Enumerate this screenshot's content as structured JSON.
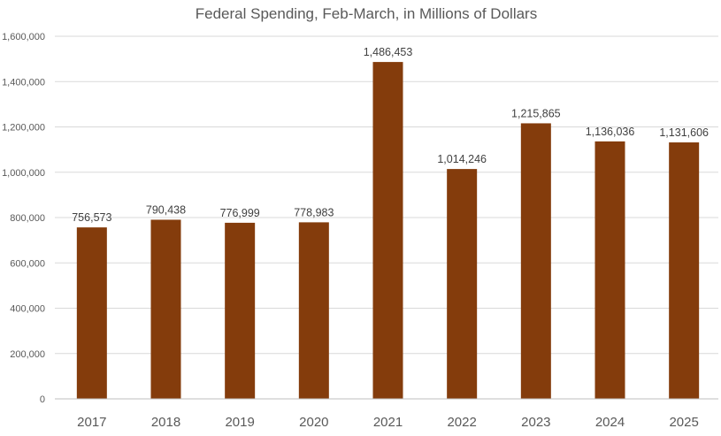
{
  "chart_data": {
    "type": "bar",
    "title": "Federal Spending, Feb-March, in Millions of Dollars",
    "xlabel": "",
    "ylabel": "",
    "categories": [
      "2017",
      "2018",
      "2019",
      "2020",
      "2021",
      "2022",
      "2023",
      "2024",
      "2025"
    ],
    "values": [
      756573,
      790438,
      776999,
      778983,
      1486453,
      1014246,
      1215865,
      1136036,
      1131606
    ],
    "data_labels": [
      "756,573",
      "790,438",
      "776,999",
      "778,983",
      "1,486,453",
      "1,014,246",
      "1,215,865",
      "1,136,036",
      "1,131,606"
    ],
    "ylim": [
      0,
      1600000
    ],
    "yticks": [
      0,
      200000,
      400000,
      600000,
      800000,
      1000000,
      1200000,
      1400000,
      1600000
    ],
    "ytick_labels": [
      "0",
      "200,000",
      "400,000",
      "600,000",
      "800,000",
      "1,000,000",
      "1,200,000",
      "1,400,000",
      "1,600,000"
    ],
    "grid": true,
    "legend": "none",
    "colors": {
      "bar": "#843C0C"
    }
  }
}
